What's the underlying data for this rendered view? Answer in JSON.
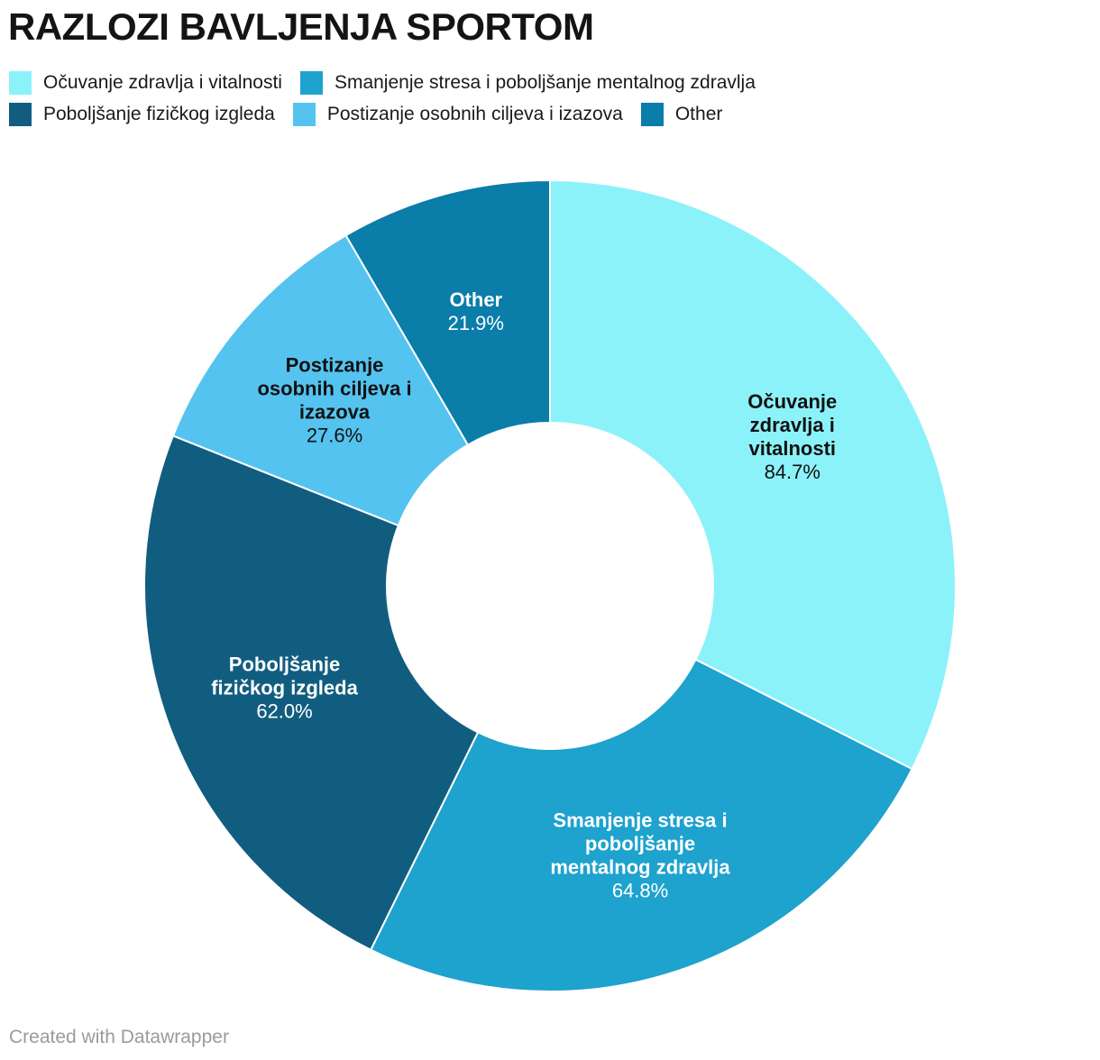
{
  "header": {
    "title": "RAZLOZI BAVLJENJA SPORTOM"
  },
  "footer": {
    "attribution": "Created with Datawrapper"
  },
  "chart_data": {
    "type": "pie",
    "subtype": "donut",
    "title": "RAZLOZI BAVLJENJA SPORTOM",
    "unit": "%",
    "start_angle_deg": 0,
    "direction": "clockwise",
    "inner_radius_px": 181,
    "outer_radius_px": 450,
    "legend_position": "top",
    "slices": [
      {
        "label": "Očuvanje zdravlja i vitalnosti",
        "value": 84.7,
        "display_value": "84.7%",
        "color": "#8CF2FA",
        "text_color": "#111111",
        "label_lines": [
          "Očuvanje",
          "zdravlja i",
          "vitalnosti"
        ]
      },
      {
        "label": "Smanjenje stresa i poboljšanje mentalnog zdravlja",
        "value": 64.8,
        "display_value": "64.8%",
        "color": "#1EA2CE",
        "text_color": "#ffffff",
        "label_lines": [
          "Smanjenje stresa i",
          "poboljšanje",
          "mentalnog zdravlja"
        ]
      },
      {
        "label": "Poboljšanje fizičkog izgleda",
        "value": 62.0,
        "display_value": "62.0%",
        "color": "#115D7F",
        "text_color": "#ffffff",
        "label_lines": [
          "Poboljšanje",
          "fizičkog izgleda"
        ]
      },
      {
        "label": "Postizanje osobnih ciljeva i izazova",
        "value": 27.6,
        "display_value": "27.6%",
        "color": "#55C3F0",
        "text_color": "#111111",
        "label_lines": [
          "Postizanje",
          "osobnih ciljeva i",
          "izazova"
        ]
      },
      {
        "label": "Other",
        "value": 21.9,
        "display_value": "21.9%",
        "color": "#0A7DA9",
        "text_color": "#ffffff",
        "label_lines": [
          "Other"
        ]
      }
    ]
  }
}
